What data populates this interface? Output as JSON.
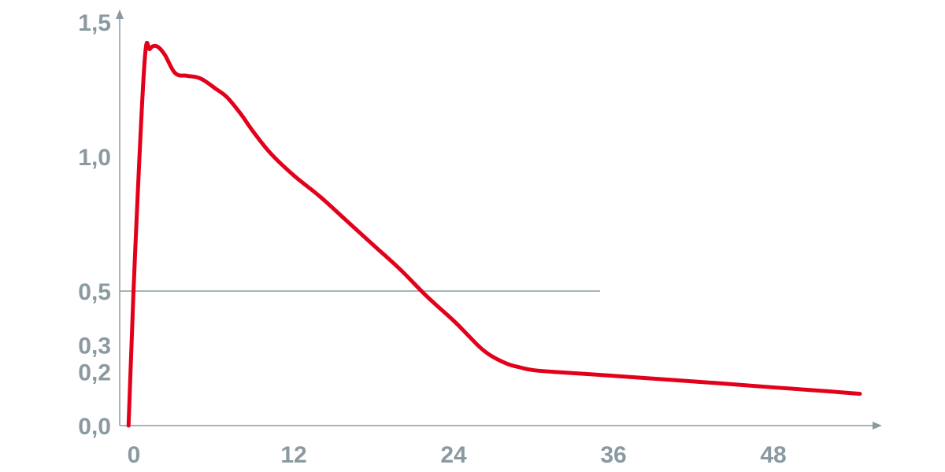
{
  "chart_data": {
    "type": "line",
    "title": "",
    "xlabel": "",
    "ylabel": "",
    "xlim": [
      0,
      56
    ],
    "ylim": [
      0,
      1.6
    ],
    "x_ticks": [
      {
        "value": 0,
        "label": "0"
      },
      {
        "value": 12,
        "label": "12"
      },
      {
        "value": 24,
        "label": "24"
      },
      {
        "value": 36,
        "label": "36"
      },
      {
        "value": 48,
        "label": "48"
      }
    ],
    "y_ticks": [
      {
        "value": 0.0,
        "label": "0,0"
      },
      {
        "value": 0.2,
        "label": "0,2"
      },
      {
        "value": 0.3,
        "label": "0,3"
      },
      {
        "value": 0.5,
        "label": "0,5"
      },
      {
        "value": 1.0,
        "label": "1,0"
      },
      {
        "value": 1.5,
        "label": "1,5"
      }
    ],
    "reference_line": {
      "y": 0.5,
      "x_start": 0,
      "x_end": 35
    },
    "grid": false,
    "colors": {
      "series": "#e2001a",
      "axis": "#8a9aa0",
      "reference": "#8a9aa0"
    },
    "series": [
      {
        "points": [
          [
            -0.4,
            0.0
          ],
          [
            0.1,
            0.65
          ],
          [
            0.8,
            1.35
          ],
          [
            1.2,
            1.4
          ],
          [
            1.7,
            1.41
          ],
          [
            2.3,
            1.38
          ],
          [
            3.1,
            1.31
          ],
          [
            4.0,
            1.3
          ],
          [
            5.0,
            1.29
          ],
          [
            6.2,
            1.25
          ],
          [
            7.0,
            1.22
          ],
          [
            8.0,
            1.16
          ],
          [
            9.0,
            1.09
          ],
          [
            10.3,
            1.01
          ],
          [
            12.0,
            0.93
          ],
          [
            14.0,
            0.85
          ],
          [
            16.0,
            0.76
          ],
          [
            18.0,
            0.67
          ],
          [
            20.0,
            0.58
          ],
          [
            22.0,
            0.48
          ],
          [
            24.0,
            0.39
          ],
          [
            25.0,
            0.34
          ],
          [
            26.0,
            0.29
          ],
          [
            26.8,
            0.26
          ],
          [
            28.0,
            0.23
          ],
          [
            29.0,
            0.216
          ],
          [
            30.0,
            0.206
          ],
          [
            32.0,
            0.198
          ],
          [
            36.0,
            0.185
          ],
          [
            40.0,
            0.171
          ],
          [
            44.0,
            0.157
          ],
          [
            48.0,
            0.142
          ],
          [
            52.0,
            0.128
          ],
          [
            54.5,
            0.118
          ]
        ]
      }
    ]
  }
}
